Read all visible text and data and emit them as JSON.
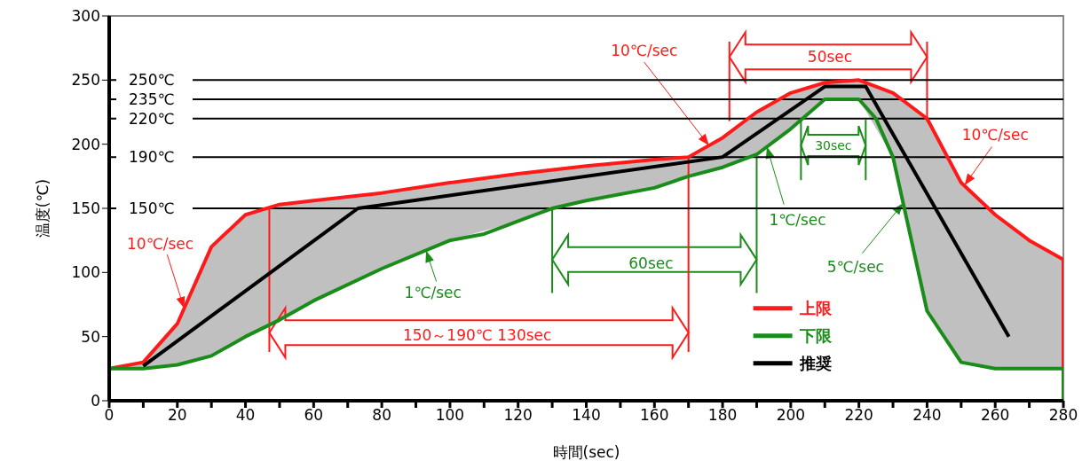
{
  "chart_data": {
    "type": "line",
    "xlabel": "時間(sec)",
    "ylabel": "温度(℃)",
    "xlim": [
      0,
      280
    ],
    "ylim": [
      0,
      300
    ],
    "xticks": [
      0,
      {
        "value": 10,
        "label": null
      },
      20,
      {
        "value": 30,
        "label": null
      },
      40,
      {
        "value": 50,
        "label": null
      },
      60,
      {
        "value": 70,
        "label": null
      },
      80,
      {
        "value": 90,
        "label": null
      },
      100,
      {
        "value": 110,
        "label": null
      },
      120,
      {
        "value": 130,
        "label": null
      },
      140,
      {
        "value": 150,
        "label": null
      },
      160,
      {
        "value": 170,
        "label": null
      },
      180,
      {
        "value": 190,
        "label": null
      },
      200,
      {
        "value": 210,
        "label": null
      },
      220,
      {
        "value": 230,
        "label": null
      },
      240,
      {
        "value": 250,
        "label": null
      },
      260,
      {
        "value": 270,
        "label": null
      },
      280
    ],
    "yticks": [
      0,
      50,
      100,
      150,
      200,
      250,
      300
    ],
    "series": [
      {
        "name": "上限",
        "color": "#ff1a1a",
        "x": [
          0,
          10,
          20,
          30,
          40,
          50,
          60,
          80,
          100,
          120,
          140,
          160,
          170,
          180,
          190,
          200,
          210,
          220,
          230,
          240,
          250,
          260,
          270,
          280,
          280
        ],
        "values": [
          25,
          30,
          60,
          120,
          145,
          153,
          156,
          162,
          170,
          177,
          183,
          188,
          190,
          205,
          225,
          240,
          248,
          250,
          240,
          220,
          170,
          145,
          125,
          110,
          25
        ],
        "lower": [
          25,
          25,
          28,
          35,
          50,
          63,
          78,
          103,
          125,
          140,
          156,
          166,
          175,
          182,
          192,
          212,
          235,
          235,
          190,
          70,
          30,
          25,
          25,
          25,
          25
        ],
        "upper": [
          25,
          30,
          60,
          120,
          145,
          153,
          156,
          162,
          170,
          177,
          183,
          188,
          190,
          205,
          225,
          240,
          248,
          250,
          240,
          220,
          170,
          145,
          125,
          110,
          25
        ]
      },
      {
        "name": "下限",
        "color": "#1a8c1a",
        "x": [
          0,
          0,
          10,
          20,
          30,
          40,
          50,
          60,
          80,
          100,
          110,
          120,
          130,
          140,
          160,
          170,
          180,
          190,
          200,
          210,
          220,
          225,
          230,
          240,
          250,
          260,
          280,
          280
        ],
        "values": [
          0,
          25,
          25,
          28,
          35,
          50,
          63,
          78,
          103,
          125,
          130,
          140,
          150,
          156,
          166,
          175,
          182,
          192,
          212,
          235,
          235,
          220,
          190,
          70,
          30,
          25,
          25,
          0
        ]
      },
      {
        "name": "推奨",
        "color": "#000000",
        "x": [
          10,
          73,
          180,
          210,
          222,
          264
        ],
        "values": [
          27,
          150,
          190,
          245,
          245,
          50
        ]
      }
    ],
    "ref_lines": [
      {
        "axis": "y",
        "value": 250,
        "label": "250℃",
        "color": "#000000"
      },
      {
        "axis": "y",
        "value": 235,
        "label": "235℃",
        "color": "#000000"
      },
      {
        "axis": "y",
        "value": 220,
        "label": "220℃",
        "color": "#000000"
      },
      {
        "axis": "y",
        "value": 190,
        "label": "190℃",
        "color": "#000000"
      },
      {
        "axis": "y",
        "value": 150,
        "label": "150℃",
        "color": "#000000"
      }
    ],
    "annotations": [
      {
        "text": "10℃/sec",
        "x": 22,
        "y": 72
      },
      {
        "text": "10℃/sec",
        "x": 176,
        "y": 199
      },
      {
        "text": "10℃/sec",
        "x": 251,
        "y": 168
      },
      {
        "text": "1℃/sec",
        "x": 93,
        "y": 117
      },
      {
        "text": "1℃/sec",
        "x": 193,
        "y": 198
      },
      {
        "text": "5℃/sec",
        "x": 233,
        "y": 154
      },
      "50sec",
      "30sec",
      "60sec",
      "150～190℃ 130sec"
    ],
    "legend": "bottom right",
    "marker": "none",
    "line_style": "solid"
  }
}
